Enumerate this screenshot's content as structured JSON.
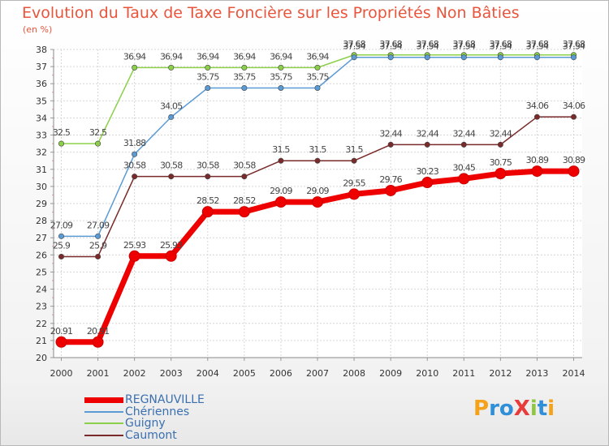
{
  "chart_data": {
    "type": "line",
    "title": "Evolution du Taux de Taxe Foncière sur les Propriétés Non Bâties",
    "ylabel": "(en %)",
    "xlabel": "",
    "x": [
      "2000",
      "2001",
      "2002",
      "2003",
      "2004",
      "2005",
      "2006",
      "2007",
      "2008",
      "2009",
      "2010",
      "2011",
      "2012",
      "2013",
      "2014"
    ],
    "ylim": [
      20,
      38
    ],
    "yticks": [
      20,
      21,
      22,
      23,
      24,
      25,
      26,
      27,
      28,
      29,
      30,
      31,
      32,
      33,
      34,
      35,
      36,
      37,
      38
    ],
    "series": [
      {
        "name": "REGNAUVILLE",
        "color": "#ee0000",
        "values": [
          20.91,
          20.91,
          25.93,
          25.93,
          28.52,
          28.52,
          29.09,
          29.09,
          29.55,
          29.76,
          30.23,
          30.45,
          30.75,
          30.89,
          30.89
        ]
      },
      {
        "name": "Chériennes",
        "color": "#5b9bd5",
        "values": [
          27.09,
          27.09,
          31.88,
          34.05,
          35.75,
          35.75,
          35.75,
          35.75,
          37.54,
          37.54,
          37.54,
          37.54,
          37.54,
          37.54,
          37.54
        ]
      },
      {
        "name": "Guigny",
        "color": "#8cd04a",
        "values": [
          32.5,
          32.5,
          36.94,
          36.94,
          36.94,
          36.94,
          36.94,
          36.94,
          37.68,
          37.68,
          37.68,
          37.68,
          37.68,
          37.68,
          37.68
        ]
      },
      {
        "name": "Caumont",
        "color": "#7a2a2a",
        "values": [
          25.9,
          25.9,
          30.58,
          30.58,
          30.58,
          30.58,
          31.5,
          31.5,
          31.5,
          32.44,
          32.44,
          32.44,
          32.44,
          34.06,
          34.06
        ]
      }
    ],
    "legend_position": "bottom-left"
  },
  "logo": {
    "text": "ProXiti",
    "colors": [
      "#f3a21a",
      "#2f8fd8",
      "#2f8fd8",
      "#e83c3c",
      "#8fc63f",
      "#2f8fd8",
      "#f3a21a"
    ]
  }
}
